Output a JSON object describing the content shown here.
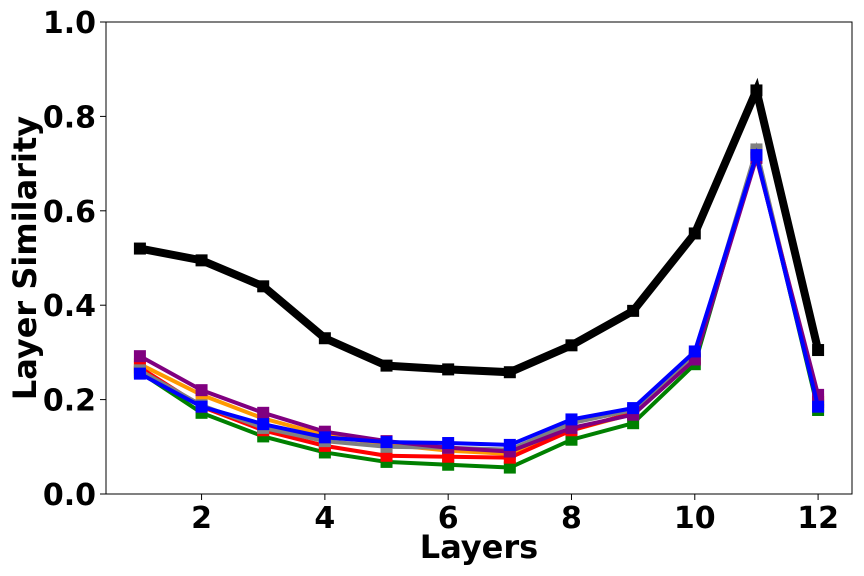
{
  "chart_data": {
    "type": "line",
    "xlabel": "Layers",
    "ylabel": "Layer Similarity",
    "xlim": [
      0.45,
      12.55
    ],
    "ylim": [
      0.0,
      1.0
    ],
    "xticks": [
      2,
      4,
      6,
      8,
      10,
      12
    ],
    "yticks": [
      0.0,
      0.2,
      0.4,
      0.6,
      0.8,
      1.0
    ],
    "grid": false,
    "x": [
      1,
      2,
      3,
      4,
      5,
      6,
      7,
      8,
      9,
      10,
      11,
      12
    ],
    "series": [
      {
        "color": "#ff9900",
        "values": [
          0.275,
          0.21,
          0.16,
          0.125,
          0.105,
          0.092,
          0.085,
          0.135,
          0.17,
          0.285,
          0.715,
          0.2
        ]
      },
      {
        "color": "#008000",
        "values": [
          0.258,
          0.172,
          0.122,
          0.088,
          0.068,
          0.062,
          0.056,
          0.115,
          0.15,
          0.275,
          0.725,
          0.178
        ]
      },
      {
        "color": "#ff0000",
        "values": [
          0.268,
          0.185,
          0.135,
          0.102,
          0.081,
          0.079,
          0.077,
          0.135,
          0.172,
          0.288,
          0.722,
          0.195
        ]
      },
      {
        "color": "#808080",
        "values": [
          0.262,
          0.188,
          0.14,
          0.112,
          0.1,
          0.098,
          0.094,
          0.15,
          0.178,
          0.292,
          0.73,
          0.188
        ]
      },
      {
        "color": "#800080",
        "values": [
          0.292,
          0.22,
          0.172,
          0.132,
          0.112,
          0.098,
          0.09,
          0.14,
          0.168,
          0.285,
          0.712,
          0.21
        ]
      },
      {
        "color": "#0000ff",
        "values": [
          0.255,
          0.185,
          0.148,
          0.12,
          0.11,
          0.108,
          0.104,
          0.158,
          0.182,
          0.302,
          0.718,
          0.185
        ]
      },
      {
        "color": "#000000",
        "values": [
          0.52,
          0.495,
          0.44,
          0.33,
          0.272,
          0.264,
          0.258,
          0.315,
          0.388,
          0.552,
          0.855,
          0.305
        ]
      }
    ]
  }
}
